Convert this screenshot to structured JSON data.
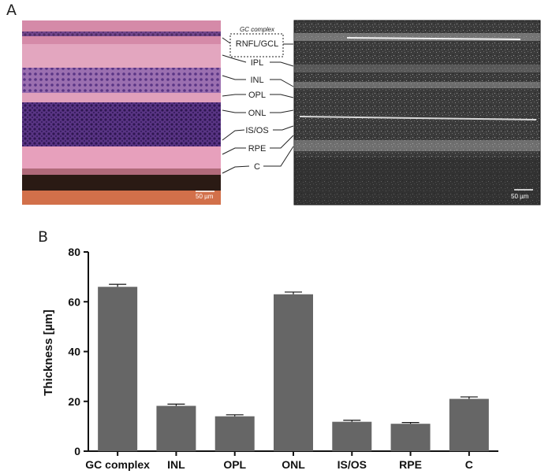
{
  "figure": {
    "panel_a_label": "A",
    "panel_b_label": "B"
  },
  "panel_a": {
    "histology_scale_bar": "50 µm",
    "oct_scale_bar": "50 µm",
    "gc_complex_label": "GC complex",
    "layer_labels": [
      "RNFL/GCL",
      "IPL",
      "INL",
      "OPL",
      "ONL",
      "IS/OS",
      "RPE",
      "C"
    ],
    "colors": {
      "stroma_pink": "#d98aa6",
      "nuclei_purple": "#4b2a78",
      "choroid_dark": "#2a1a14",
      "sclera_orange": "#d2704a",
      "oct_background": "#3a3a3a"
    }
  },
  "chart_data": {
    "type": "bar",
    "categories": [
      "GC complex",
      "INL",
      "OPL",
      "ONL",
      "IS/OS",
      "RPE",
      "C"
    ],
    "values": [
      66,
      18.2,
      14,
      63,
      11.8,
      11,
      21
    ],
    "errors": [
      1.0,
      0.7,
      0.6,
      0.9,
      0.6,
      0.5,
      0.8
    ],
    "ylabel": "Thickness [µm]",
    "xlabel": "",
    "ylim": [
      0,
      80
    ],
    "yticks": [
      0,
      20,
      40,
      60,
      80
    ],
    "bar_color": "#666666",
    "grid": false
  }
}
